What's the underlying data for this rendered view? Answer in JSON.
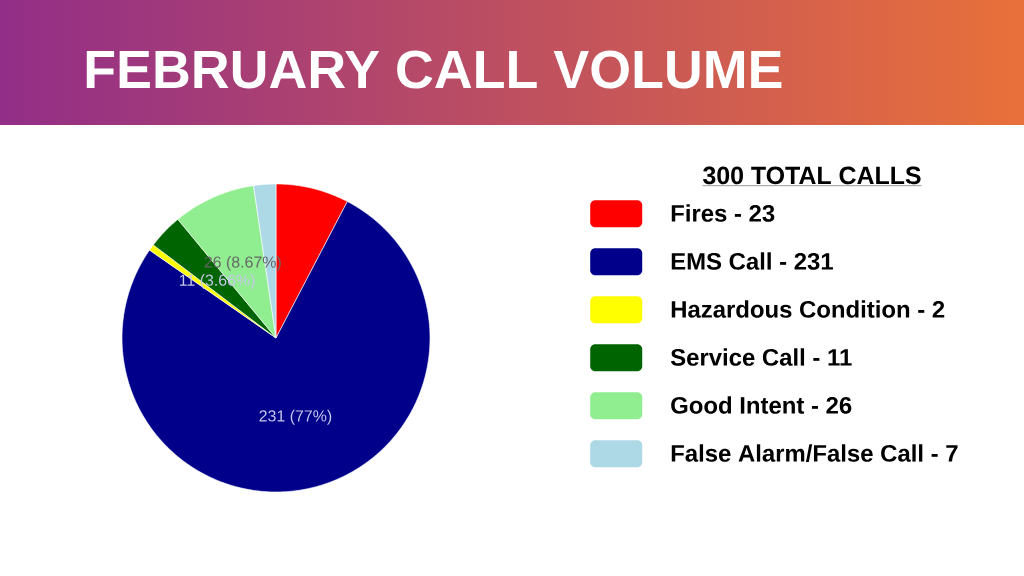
{
  "chart_data": {
    "type": "pie",
    "title": "FEBRUARY CALL VOLUME",
    "legend_title": "300 TOTAL  CALLS",
    "categories": [
      "Fires - 23",
      "EMS Call - 231",
      "Hazardous Condition - 2",
      "Service Call - 11",
      "Good Intent - 26",
      "False Alarm/False Call - 7"
    ],
    "values": [
      23,
      231,
      2,
      11,
      26,
      7
    ],
    "colors": [
      "#ff0000",
      "#00008b",
      "#ffff00",
      "#006400",
      "#90ee90",
      "#add8e6"
    ],
    "value_labels": [
      null,
      "231 (77%)",
      null,
      "11 (3.66%)",
      "26 (8.67%)",
      null
    ],
    "legend": "right"
  }
}
